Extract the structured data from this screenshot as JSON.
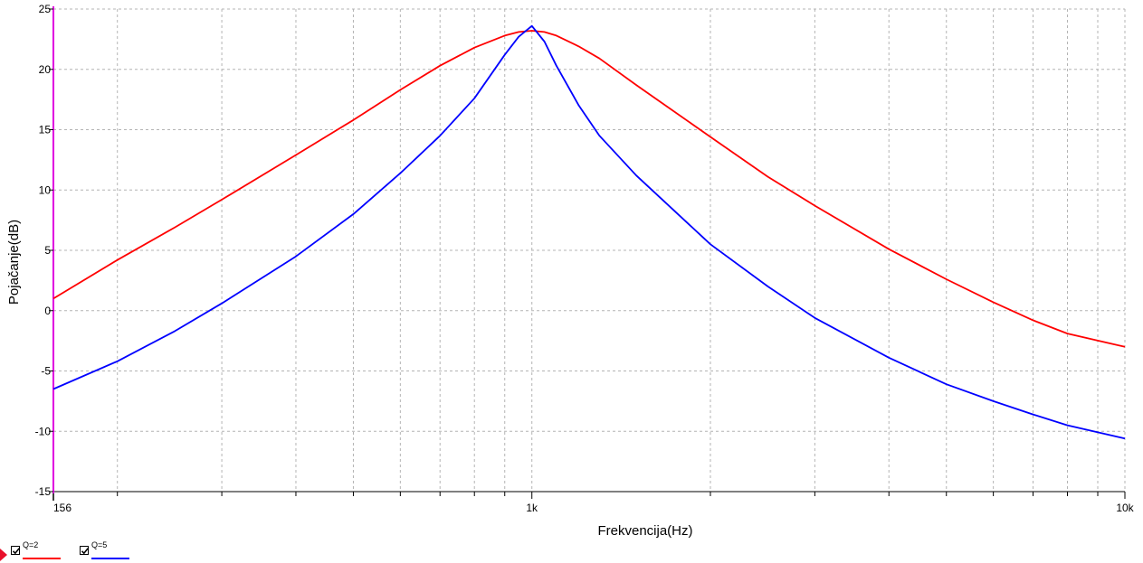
{
  "chart_data": {
    "type": "line",
    "xscale": "log",
    "xlim": [
      156,
      10000
    ],
    "ylim": [
      -15,
      25
    ],
    "yticks": [
      25,
      20,
      15,
      10,
      5,
      0,
      -5,
      -10,
      -15
    ],
    "xtick_labels": [
      {
        "value": 156,
        "label": "156"
      },
      {
        "value": 1000,
        "label": "1k"
      },
      {
        "value": 10000,
        "label": "10k"
      }
    ],
    "xlabel": "Frekvencija(Hz)",
    "ylabel": "Pojačanje(dB)",
    "grid": true,
    "series": [
      {
        "name": "Q=2",
        "color": "#ff0000",
        "x": [
          156,
          200,
          250,
          300,
          400,
          500,
          600,
          700,
          800,
          900,
          950,
          1000,
          1050,
          1100,
          1200,
          1300,
          1500,
          2000,
          2500,
          3000,
          4000,
          5000,
          6000,
          7000,
          8000,
          10000
        ],
        "y": [
          1.0,
          4.2,
          6.9,
          9.2,
          12.9,
          15.8,
          18.3,
          20.3,
          21.8,
          22.8,
          23.1,
          23.2,
          23.1,
          22.8,
          21.9,
          20.9,
          18.7,
          14.4,
          11.1,
          8.7,
          5.1,
          2.6,
          0.7,
          -0.8,
          -1.9,
          -3.0
        ]
      },
      {
        "name": "Q=5",
        "color": "#0000ff",
        "x": [
          156,
          200,
          250,
          300,
          400,
          500,
          600,
          700,
          800,
          900,
          950,
          1000,
          1050,
          1100,
          1200,
          1300,
          1500,
          2000,
          2500,
          3000,
          4000,
          5000,
          6000,
          7000,
          8000,
          10000
        ],
        "y": [
          -6.5,
          -4.2,
          -1.7,
          0.6,
          4.5,
          8.0,
          11.4,
          14.5,
          17.6,
          21.2,
          22.7,
          23.6,
          22.3,
          20.3,
          17.0,
          14.5,
          11.2,
          5.5,
          2.0,
          -0.6,
          -3.9,
          -6.1,
          -7.5,
          -8.6,
          -9.5,
          -10.6
        ]
      }
    ]
  },
  "legend": {
    "items": [
      {
        "label": "Q=2",
        "color": "#ff0000",
        "checked": true
      },
      {
        "label": "Q=5",
        "color": "#0000ff",
        "checked": true
      }
    ]
  },
  "colors": {
    "axis": "#e000e0",
    "grid": "#b4b4b4",
    "marker": "#e8102a"
  }
}
